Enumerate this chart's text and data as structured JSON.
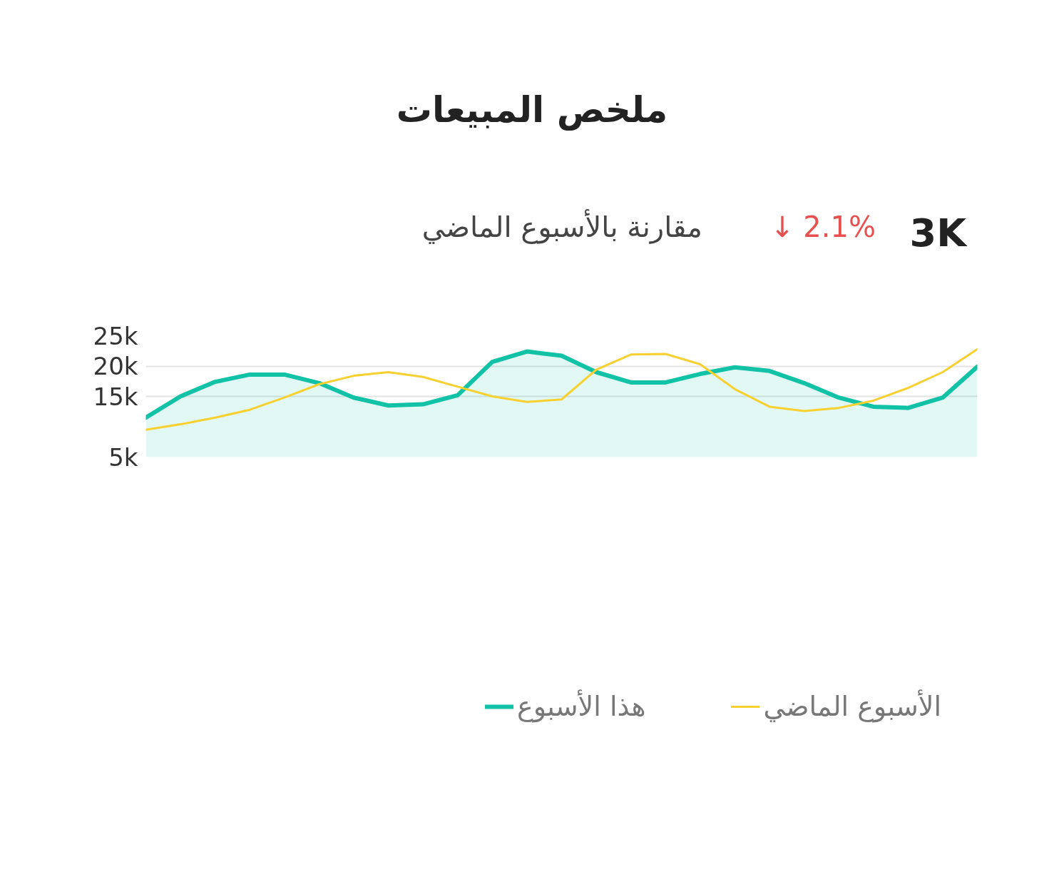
{
  "chart_data": {
    "type": "line",
    "title": "ملخص المبيعات",
    "annotations": [
      "3K",
      "↓ 2.1%",
      "مقارنة بالأسبوع الماضي"
    ],
    "categories": [
      null,
      null,
      null,
      null,
      null,
      null,
      null,
      null,
      null,
      null,
      null,
      null,
      null,
      null,
      null,
      null,
      null,
      null,
      null,
      null,
      null,
      null,
      null,
      null,
      null
    ],
    "series": [
      {
        "name": "هذا الأسبوع",
        "type": "area",
        "color": "#12c2a7",
        "values": [
          11.5,
          15.0,
          17.4,
          18.6,
          18.6,
          17.2,
          14.8,
          13.5,
          13.7,
          15.2,
          20.7,
          22.4,
          21.7,
          19.0,
          17.3,
          17.3,
          18.7,
          19.8,
          19.2,
          17.2,
          14.8,
          13.3,
          13.1,
          14.8,
          19.9
        ]
      },
      {
        "name": "الأسبوع الماضي",
        "color": "#f8d030",
        "values": [
          9.5,
          10.4,
          11.5,
          12.8,
          14.8,
          17.0,
          18.4,
          19.0,
          18.2,
          16.6,
          15.0,
          14.1,
          14.5,
          19.4,
          21.9,
          22.0,
          20.3,
          16.2,
          13.3,
          12.6,
          13.1,
          14.3,
          16.4,
          19.0,
          22.8
        ]
      }
    ],
    "ylim": [
      5,
      25
    ],
    "yticks": [
      {
        "value": 25,
        "label": "25k"
      },
      {
        "value": 20,
        "label": "20k"
      },
      {
        "value": 15,
        "label": "15k"
      },
      {
        "value": 5,
        "label": "5k"
      }
    ],
    "tick_labels": "y",
    "grid": "y",
    "legend": "bottom",
    "line_style": "solid",
    "marker": "none"
  }
}
